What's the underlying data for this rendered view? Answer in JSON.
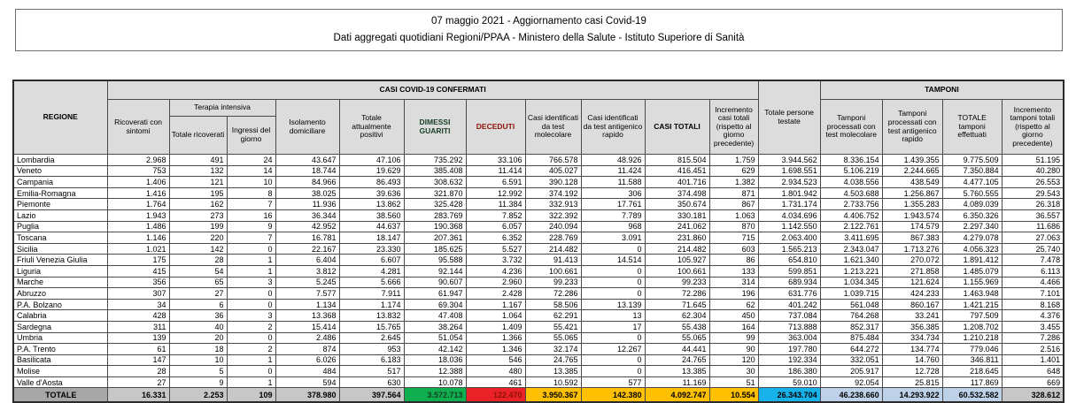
{
  "title": {
    "line1": "07 maggio 2021 - Aggiornamento casi Covid-19",
    "line2": "Dati aggregati quotidiani Regioni/PPAA - Ministero della Salute - Istituto Superiore di Sanità"
  },
  "colors": {
    "green": "#0fae4e",
    "red": "#ea2127",
    "yellow": "#fec000",
    "cyan": "#17b2ea",
    "light_blue": "#bdd1e9",
    "header_gray": "#a7a7a7",
    "subheader_gray": "#dcdcdc",
    "totale_gray": "#c7c7c7"
  },
  "table": {
    "group_headers": {
      "casi_confermati": "CASI COVID-19 CONFERMATI",
      "tamponi": "TAMPONI",
      "terapia_intensiva": "Terapia intensiva"
    },
    "columns": {
      "regione": "REGIONE",
      "ricoverati_sintomi": "Ricoverati con sintomi",
      "totale_ricoverati": "Totale ricoverati",
      "ingressi_giorno": "Ingressi del giorno",
      "isolamento": "Isolamento domiciliare",
      "attualmente_positivi": "Totale attualmente positivi",
      "dimessi_guariti": "DIMESSI GUARITI",
      "deceduti": "DECEDUTI",
      "casi_molecolare": "Casi identificati da test molecolare",
      "casi_antigenico": "Casi identificati da test antigenico rapido",
      "casi_totali": "CASI TOTALI",
      "incremento_casi": "Incremento casi totali (rispetto al giorno precedente)",
      "persone_testate": "Totale persone testate",
      "tamponi_molecolare": "Tamponi processati con test molecolare",
      "tamponi_antigenico": "Tamponi processati con test antigenico rapido",
      "totale_tamponi": "TOTALE tamponi effettuati",
      "incremento_tamponi": "Incremento tamponi totali (rispetto al giorno precedente)"
    },
    "rows": [
      {
        "name": "Lombardia",
        "values": [
          "2.968",
          "491",
          "24",
          "43.647",
          "47.106",
          "735.292",
          "33.106",
          "766.578",
          "48.926",
          "815.504",
          "1.759",
          "3.944.562",
          "8.336.154",
          "1.439.355",
          "9.775.509",
          "51.195"
        ]
      },
      {
        "name": "Veneto",
        "values": [
          "753",
          "132",
          "14",
          "18.744",
          "19.629",
          "385.408",
          "11.414",
          "405.027",
          "11.424",
          "416.451",
          "629",
          "1.698.551",
          "5.106.219",
          "2.244.665",
          "7.350.884",
          "40.280"
        ]
      },
      {
        "name": "Campania",
        "values": [
          "1.406",
          "121",
          "10",
          "84.966",
          "86.493",
          "308.632",
          "6.591",
          "390.128",
          "11.588",
          "401.716",
          "1.382",
          "2.934.523",
          "4.038.556",
          "438.549",
          "4.477.105",
          "26.553"
        ]
      },
      {
        "name": "Emilia-Romagna",
        "values": [
          "1.416",
          "195",
          "8",
          "38.025",
          "39.636",
          "321.870",
          "12.992",
          "374.192",
          "306",
          "374.498",
          "871",
          "1.801.942",
          "4.503.688",
          "1.256.867",
          "5.760.555",
          "29.543"
        ]
      },
      {
        "name": "Piemonte",
        "values": [
          "1.764",
          "162",
          "7",
          "11.936",
          "13.862",
          "325.428",
          "11.384",
          "332.913",
          "17.761",
          "350.674",
          "867",
          "1.731.174",
          "2.733.756",
          "1.355.283",
          "4.089.039",
          "26.318"
        ]
      },
      {
        "name": "Lazio",
        "values": [
          "1.943",
          "273",
          "16",
          "36.344",
          "38.560",
          "283.769",
          "7.852",
          "322.392",
          "7.789",
          "330.181",
          "1.063",
          "4.034.696",
          "4.406.752",
          "1.943.574",
          "6.350.326",
          "36.557"
        ]
      },
      {
        "name": "Puglia",
        "values": [
          "1.486",
          "199",
          "9",
          "42.952",
          "44.637",
          "190.368",
          "6.057",
          "240.094",
          "968",
          "241.062",
          "870",
          "1.142.550",
          "2.122.761",
          "174.579",
          "2.297.340",
          "11.686"
        ]
      },
      {
        "name": "Toscana",
        "values": [
          "1.146",
          "220",
          "7",
          "16.781",
          "18.147",
          "207.361",
          "6.352",
          "228.769",
          "3.091",
          "231.860",
          "715",
          "2.063.400",
          "3.411.695",
          "867.383",
          "4.279.078",
          "27.063"
        ]
      },
      {
        "name": "Sicilia",
        "values": [
          "1.021",
          "142",
          "0",
          "22.167",
          "23.330",
          "185.625",
          "5.527",
          "214.482",
          "0",
          "214.482",
          "603",
          "1.565.213",
          "2.343.047",
          "1.713.276",
          "4.056.323",
          "25.740"
        ]
      },
      {
        "name": "Friuli Venezia Giulia",
        "values": [
          "175",
          "28",
          "1",
          "6.404",
          "6.607",
          "95.588",
          "3.732",
          "91.413",
          "14.514",
          "105.927",
          "86",
          "654.810",
          "1.621.340",
          "270.072",
          "1.891.412",
          "7.478"
        ]
      },
      {
        "name": "Liguria",
        "values": [
          "415",
          "54",
          "1",
          "3.812",
          "4.281",
          "92.144",
          "4.236",
          "100.661",
          "0",
          "100.661",
          "133",
          "599.851",
          "1.213.221",
          "271.858",
          "1.485.079",
          "6.113"
        ]
      },
      {
        "name": "Marche",
        "values": [
          "356",
          "65",
          "3",
          "5.245",
          "5.666",
          "90.607",
          "2.960",
          "99.233",
          "0",
          "99.233",
          "314",
          "689.934",
          "1.034.345",
          "121.624",
          "1.155.969",
          "4.466"
        ]
      },
      {
        "name": "Abruzzo",
        "values": [
          "307",
          "27",
          "0",
          "7.577",
          "7.911",
          "61.947",
          "2.428",
          "72.286",
          "0",
          "72.286",
          "196",
          "631.776",
          "1.039.715",
          "424.233",
          "1.463.948",
          "7.101"
        ]
      },
      {
        "name": "P.A. Bolzano",
        "values": [
          "34",
          "6",
          "0",
          "1.134",
          "1.174",
          "69.304",
          "1.167",
          "58.506",
          "13.139",
          "71.645",
          "62",
          "401.242",
          "561.048",
          "860.167",
          "1.421.215",
          "8.168"
        ]
      },
      {
        "name": "Calabria",
        "values": [
          "428",
          "36",
          "3",
          "13.368",
          "13.832",
          "47.408",
          "1.064",
          "62.291",
          "13",
          "62.304",
          "450",
          "737.084",
          "764.268",
          "33.241",
          "797.509",
          "4.376"
        ]
      },
      {
        "name": "Sardegna",
        "values": [
          "311",
          "40",
          "2",
          "15.414",
          "15.765",
          "38.264",
          "1.409",
          "55.421",
          "17",
          "55.438",
          "164",
          "713.888",
          "852.317",
          "356.385",
          "1.208.702",
          "3.455"
        ]
      },
      {
        "name": "Umbria",
        "values": [
          "139",
          "20",
          "0",
          "2.486",
          "2.645",
          "51.054",
          "1.366",
          "55.065",
          "0",
          "55.065",
          "99",
          "363.004",
          "875.484",
          "334.734",
          "1.210.218",
          "7.286"
        ]
      },
      {
        "name": "P.A. Trento",
        "values": [
          "61",
          "18",
          "2",
          "874",
          "953",
          "42.142",
          "1.346",
          "32.174",
          "12.267",
          "44.441",
          "90",
          "197.780",
          "644.272",
          "134.774",
          "779.046",
          "2.516"
        ]
      },
      {
        "name": "Basilicata",
        "values": [
          "147",
          "10",
          "1",
          "6.026",
          "6.183",
          "18.036",
          "546",
          "24.765",
          "0",
          "24.765",
          "120",
          "192.334",
          "332.051",
          "14.760",
          "346.811",
          "1.401"
        ]
      },
      {
        "name": "Molise",
        "values": [
          "28",
          "5",
          "0",
          "484",
          "517",
          "12.388",
          "480",
          "13.385",
          "0",
          "13.385",
          "30",
          "186.380",
          "205.917",
          "12.728",
          "218.645",
          "648"
        ]
      },
      {
        "name": "Valle d'Aosta",
        "values": [
          "27",
          "9",
          "1",
          "594",
          "630",
          "10.078",
          "461",
          "10.592",
          "577",
          "11.169",
          "51",
          "59.010",
          "92.054",
          "25.815",
          "117.869",
          "669"
        ]
      },
      {
        "name": "TOTALE",
        "total": true,
        "values": [
          "16.331",
          "2.253",
          "109",
          "378.980",
          "397.564",
          "3.572.713",
          "122.470",
          "3.950.367",
          "142.380",
          "4.092.747",
          "10.554",
          "26.343.704",
          "46.238.660",
          "14.293.922",
          "60.532.582",
          "328.612"
        ]
      }
    ]
  }
}
